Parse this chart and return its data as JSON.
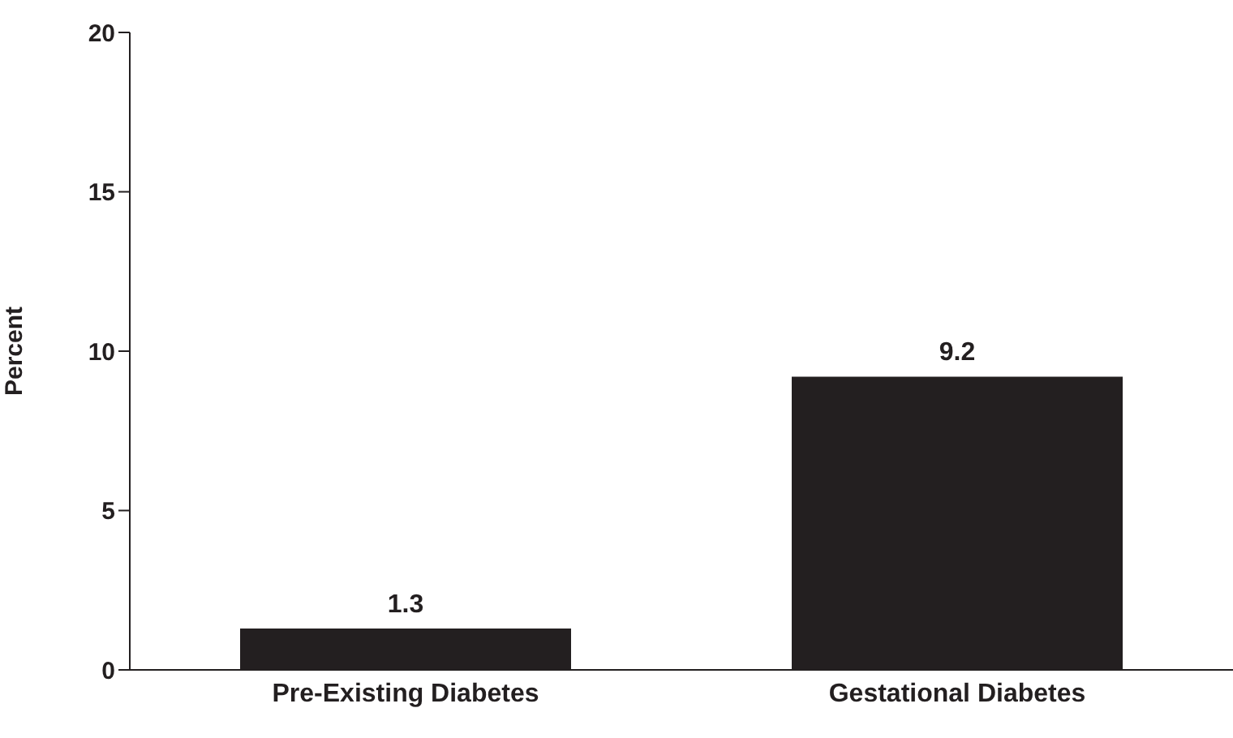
{
  "chart_data": {
    "type": "bar",
    "ylabel": "Percent",
    "categories": [
      "Pre-Existing Diabetes",
      "Gestational Diabetes"
    ],
    "values": [
      1.3,
      9.2
    ],
    "color": "#231f20",
    "ylim": [
      0,
      20
    ],
    "yticks": [
      0,
      5,
      10,
      15,
      20
    ],
    "data_labels": true,
    "grid": false,
    "legend": false
  }
}
